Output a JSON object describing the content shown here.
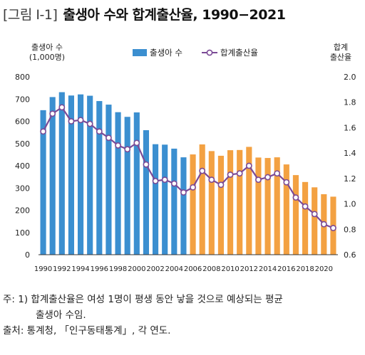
{
  "header": {
    "figure_label": "[그림 Ⅰ-1]",
    "title": "출생아 수와 합계출산율, 1990−2021"
  },
  "chart_data": {
    "type": "bar",
    "title": "출생아 수와 합계출산율, 1990−2021",
    "x": [
      1990,
      1991,
      1992,
      1993,
      1994,
      1995,
      1996,
      1997,
      1998,
      1999,
      2000,
      2001,
      2002,
      2003,
      2004,
      2005,
      2006,
      2007,
      2008,
      2009,
      2010,
      2011,
      2012,
      2013,
      2014,
      2015,
      2016,
      2017,
      2018,
      2019,
      2020,
      2021
    ],
    "x_tick_labels": [
      "1990",
      "1992",
      "1994",
      "1996",
      "1998",
      "2000",
      "2002",
      "2004",
      "2006",
      "2008",
      "2010",
      "2012",
      "2014",
      "2016",
      "2018",
      "2020"
    ],
    "ylabel_left": [
      "출생아 수",
      "(1,000명)"
    ],
    "ylabel_right": [
      "합계",
      "출산율"
    ],
    "ylim_left": [
      0,
      800
    ],
    "ylim_right": [
      0.6,
      2.0
    ],
    "yticks_left": [
      "0",
      "100",
      "200",
      "300",
      "400",
      "500",
      "600",
      "700",
      "800"
    ],
    "yticks_right": [
      "0.6",
      "0.8",
      "1.0",
      "1.2",
      "1.4",
      "1.6",
      "1.8",
      "2.0"
    ],
    "series": [
      {
        "name": "출생아 수",
        "kind": "bar",
        "axis": "left",
        "values": [
          650,
          709,
          731,
          716,
          721,
          715,
          691,
          675,
          641,
          620,
          640,
          560,
          497,
          495,
          477,
          438,
          451,
          496,
          466,
          445,
          470,
          471,
          485,
          437,
          435,
          438,
          406,
          358,
          327,
          303,
          272,
          261
        ]
      },
      {
        "name": "합계출산율",
        "kind": "line",
        "axis": "right",
        "values": [
          1.57,
          1.71,
          1.76,
          1.65,
          1.66,
          1.63,
          1.57,
          1.52,
          1.46,
          1.43,
          1.48,
          1.31,
          1.18,
          1.19,
          1.16,
          1.09,
          1.13,
          1.26,
          1.19,
          1.15,
          1.23,
          1.24,
          1.3,
          1.19,
          1.21,
          1.24,
          1.17,
          1.05,
          0.98,
          0.92,
          0.84,
          0.81
        ]
      }
    ],
    "colors": {
      "bars_1990_2005": "#3b8fd0",
      "bars_2006_2021": "#f3a142",
      "line": "#7b4a96",
      "marker_fill": "#ffffff"
    },
    "legend_position": "top"
  },
  "notes": {
    "note1_line1": "주: 1) 합계출산율은 여성 1명이 평생 동안 낳을 것으로 예상되는 평균",
    "note1_line2": "출생아 수임.",
    "source": "출처: 통계청, 「인구동태통계」, 각 연도."
  }
}
